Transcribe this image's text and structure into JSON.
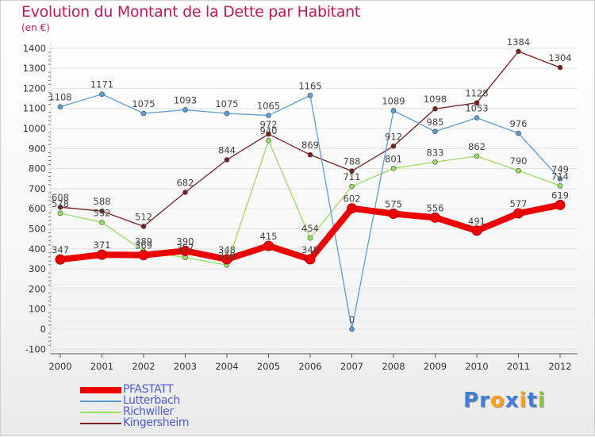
{
  "title": "Evolution du Montant de la Dette par Habitant",
  "subtitle": "(en €)",
  "logo": {
    "letters": [
      {
        "ch": "P",
        "color": "#3f7fd8"
      },
      {
        "ch": "r",
        "color": "#3f7fd8"
      },
      {
        "ch": "o",
        "color": "#ff9f1c"
      },
      {
        "ch": "x",
        "color": "#3f7fd8"
      },
      {
        "ch": "i",
        "color": "#ff9f1c"
      },
      {
        "ch": "t",
        "color": "#3f7fd8"
      },
      {
        "ch": "i",
        "color": "#8cc63f"
      }
    ]
  },
  "chart_data": {
    "type": "line",
    "categories": [
      "2000",
      "2001",
      "2002",
      "2003",
      "2004",
      "2005",
      "2006",
      "2007",
      "2008",
      "2009",
      "2010",
      "2011",
      "2012"
    ],
    "ylim": [
      -100,
      1400
    ],
    "yticks": [
      -100,
      0,
      100,
      200,
      300,
      400,
      500,
      600,
      700,
      800,
      900,
      1000,
      1100,
      1200,
      1300,
      1400
    ],
    "grid": "horizontal",
    "series": [
      {
        "name": "PFASTATT",
        "color": "#ee0000",
        "values": [
          347,
          371,
          369,
          390,
          348,
          415,
          348,
          602,
          575,
          556,
          491,
          577,
          619
        ]
      },
      {
        "name": "Lutterbach",
        "color": "#5b9fd4",
        "values": [
          1108,
          1171,
          1075,
          1093,
          1075,
          1065,
          1165,
          0,
          1089,
          985,
          1053,
          976,
          749
        ]
      },
      {
        "name": "Richwiller",
        "color": "#99e05f",
        "values": [
          578,
          532,
          389,
          357,
          319,
          940,
          454,
          711,
          801,
          833,
          862,
          790,
          714
        ]
      },
      {
        "name": "Kingersheim",
        "color": "#7a1f1f",
        "values": [
          608,
          588,
          512,
          682,
          844,
          972,
          869,
          788,
          912,
          1098,
          1128,
          1384,
          1304
        ]
      }
    ]
  }
}
